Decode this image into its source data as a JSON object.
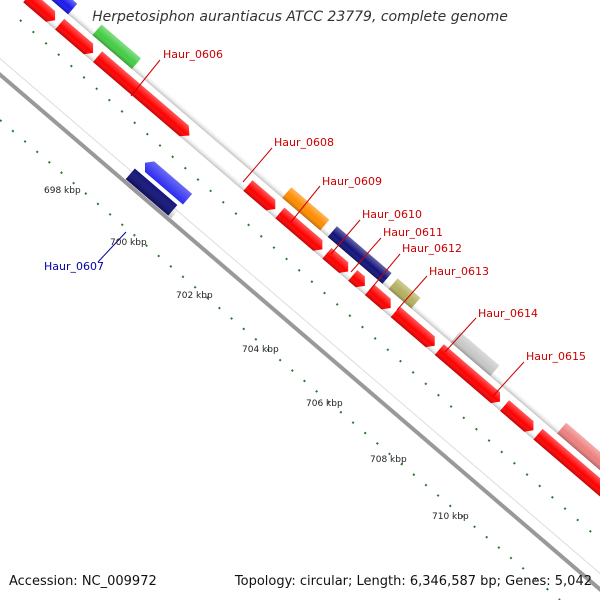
{
  "title": "Herpetosiphon aurantiacus ATCC 23779, complete genome",
  "footer": {
    "accession": "Accession: NC_009972",
    "summary": "Topology: circular; Length: 6,346,587 bp; Genes: 5,042"
  },
  "colors": {
    "backbone": "#999999",
    "cds": "#ff0000",
    "forward_label": "#cc0000",
    "reverse_label": "#0000aa",
    "tick": "#3a8a3a",
    "gc_tick": "#2a7a2a"
  },
  "ruler_labels": [
    "698 kbp",
    "700 kbp",
    "702 kbp",
    "704 kbp",
    "706 kbp",
    "708 kbp",
    "710 kbp"
  ],
  "gene_labels": [
    {
      "text": "Haur_0606",
      "strand": "forward"
    },
    {
      "text": "Haur_0607",
      "strand": "reverse"
    },
    {
      "text": "Haur_0608",
      "strand": "forward"
    },
    {
      "text": "Haur_0609",
      "strand": "forward"
    },
    {
      "text": "Haur_0610",
      "strand": "forward"
    },
    {
      "text": "Haur_0611",
      "strand": "forward"
    },
    {
      "text": "Haur_0612",
      "strand": "forward"
    },
    {
      "text": "Haur_0613",
      "strand": "forward"
    },
    {
      "text": "Haur_0614",
      "strand": "forward"
    },
    {
      "text": "Haur_0615",
      "strand": "forward"
    }
  ],
  "features": [
    {
      "name": "blue-top-left",
      "color": "#1a1aee"
    },
    {
      "name": "green-gene",
      "color": "#44cc44"
    },
    {
      "name": "orange-gene",
      "color": "#ff8c00"
    },
    {
      "name": "navy-gene-0609",
      "color": "#12127a"
    },
    {
      "name": "khaki-gene",
      "color": "#b5b060"
    },
    {
      "name": "gray-gene",
      "color": "#c8c8c8"
    },
    {
      "name": "pink-gene",
      "color": "#ee8080"
    },
    {
      "name": "navy-gene-0615",
      "color": "#1a1a6a"
    },
    {
      "name": "olive-gene",
      "color": "#6b8a22"
    },
    {
      "name": "blue-gene-0607",
      "color": "#1a1aee"
    },
    {
      "name": "navy-gene-0607",
      "color": "#12127a"
    }
  ]
}
